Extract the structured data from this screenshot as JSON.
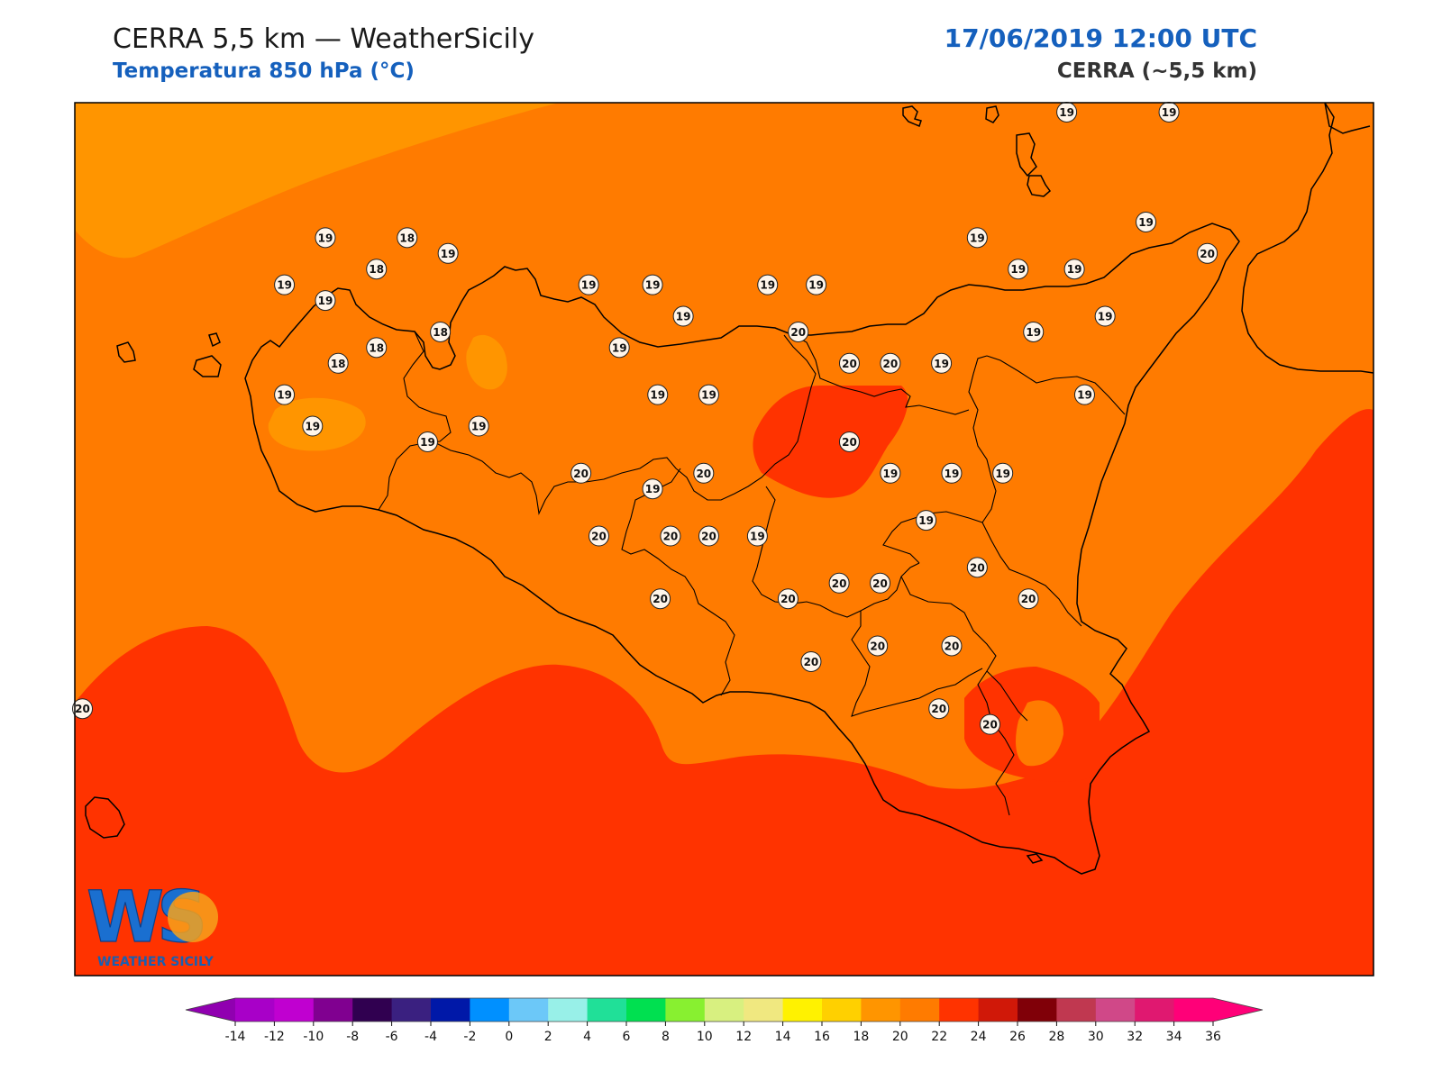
{
  "header": {
    "title": "CERRA 5,5 km — WeatherSicily",
    "subtitle": "Temperatura 850 hPa (°C)",
    "datetime": "17/06/2019 12:00 UTC",
    "model": "CERRA (~5,5 km)"
  },
  "logo": {
    "letters": "WS",
    "name": "WEATHER SICILY"
  },
  "colors": {
    "field_16_18": "#ff9500",
    "field_18_20": "#ff7b00",
    "field_20_22": "#ff3300",
    "coast": "#000000",
    "label_bg": "#fff5ea"
  },
  "colorbar": {
    "ticks": [
      "-14",
      "-12",
      "-10",
      "-8",
      "-6",
      "-4",
      "-2",
      "0",
      "2",
      "4",
      "6",
      "8",
      "10",
      "12",
      "14",
      "16",
      "18",
      "20",
      "22",
      "24",
      "26",
      "28",
      "30",
      "32",
      "34",
      "36"
    ],
    "colors": [
      "#a800c8",
      "#c000d0",
      "#800090",
      "#300050",
      "#3a2080",
      "#0018a8",
      "#0090ff",
      "#6cc8f8",
      "#98f0e8",
      "#20e098",
      "#00e050",
      "#88f030",
      "#d8f080",
      "#f0e880",
      "#fff200",
      "#ffd000",
      "#ff9500",
      "#ff7b00",
      "#ff3300",
      "#d01808",
      "#800008",
      "#c03850",
      "#d04888",
      "#e01870",
      "#ff0078"
    ],
    "min_arrow_color": "#9000b0",
    "max_arrow_color": "#ff0078"
  },
  "labels": [
    {
      "v": "19",
      "lon": 14.95,
      "lat": 39.0
    },
    {
      "v": "19",
      "lon": 15.35,
      "lat": 39.0
    },
    {
      "v": "19",
      "lon": 12.05,
      "lat": 38.6
    },
    {
      "v": "18",
      "lon": 12.37,
      "lat": 38.6
    },
    {
      "v": "19",
      "lon": 12.53,
      "lat": 38.55
    },
    {
      "v": "18",
      "lon": 12.25,
      "lat": 38.5
    },
    {
      "v": "19",
      "lon": 11.89,
      "lat": 38.45
    },
    {
      "v": "19",
      "lon": 12.05,
      "lat": 38.4
    },
    {
      "v": "19",
      "lon": 13.08,
      "lat": 38.45
    },
    {
      "v": "19",
      "lon": 13.33,
      "lat": 38.45
    },
    {
      "v": "19",
      "lon": 13.78,
      "lat": 38.45
    },
    {
      "v": "19",
      "lon": 13.97,
      "lat": 38.45
    },
    {
      "v": "19",
      "lon": 14.6,
      "lat": 38.6
    },
    {
      "v": "19",
      "lon": 14.76,
      "lat": 38.5
    },
    {
      "v": "19",
      "lon": 14.98,
      "lat": 38.5
    },
    {
      "v": "19",
      "lon": 15.26,
      "lat": 38.65
    },
    {
      "v": "20",
      "lon": 15.5,
      "lat": 38.55
    },
    {
      "v": "19",
      "lon": 13.45,
      "lat": 38.35
    },
    {
      "v": "20",
      "lon": 13.9,
      "lat": 38.3
    },
    {
      "v": "18",
      "lon": 12.5,
      "lat": 38.3
    },
    {
      "v": "19",
      "lon": 13.2,
      "lat": 38.25
    },
    {
      "v": "18",
      "lon": 12.25,
      "lat": 38.25
    },
    {
      "v": "18",
      "lon": 12.1,
      "lat": 38.2
    },
    {
      "v": "20",
      "lon": 14.1,
      "lat": 38.2
    },
    {
      "v": "20",
      "lon": 14.26,
      "lat": 38.2
    },
    {
      "v": "19",
      "lon": 14.46,
      "lat": 38.2
    },
    {
      "v": "19",
      "lon": 14.82,
      "lat": 38.3
    },
    {
      "v": "19",
      "lon": 15.1,
      "lat": 38.35
    },
    {
      "v": "19",
      "lon": 11.89,
      "lat": 38.1
    },
    {
      "v": "19",
      "lon": 13.35,
      "lat": 38.1
    },
    {
      "v": "19",
      "lon": 13.55,
      "lat": 38.1
    },
    {
      "v": "19",
      "lon": 15.02,
      "lat": 38.1
    },
    {
      "v": "19",
      "lon": 12.0,
      "lat": 38.0
    },
    {
      "v": "19",
      "lon": 12.45,
      "lat": 37.95
    },
    {
      "v": "19",
      "lon": 12.65,
      "lat": 38.0
    },
    {
      "v": "20",
      "lon": 14.1,
      "lat": 37.95
    },
    {
      "v": "20",
      "lon": 13.05,
      "lat": 37.85
    },
    {
      "v": "19",
      "lon": 13.33,
      "lat": 37.8
    },
    {
      "v": "20",
      "lon": 13.53,
      "lat": 37.85
    },
    {
      "v": "19",
      "lon": 14.26,
      "lat": 37.85
    },
    {
      "v": "19",
      "lon": 14.5,
      "lat": 37.85
    },
    {
      "v": "19",
      "lon": 14.7,
      "lat": 37.85
    },
    {
      "v": "19",
      "lon": 14.4,
      "lat": 37.7
    },
    {
      "v": "20",
      "lon": 13.12,
      "lat": 37.65
    },
    {
      "v": "20",
      "lon": 13.4,
      "lat": 37.65
    },
    {
      "v": "20",
      "lon": 13.55,
      "lat": 37.65
    },
    {
      "v": "19",
      "lon": 13.74,
      "lat": 37.65
    },
    {
      "v": "20",
      "lon": 14.6,
      "lat": 37.55
    },
    {
      "v": "20",
      "lon": 13.86,
      "lat": 37.45
    },
    {
      "v": "20",
      "lon": 13.36,
      "lat": 37.45
    },
    {
      "v": "20",
      "lon": 14.06,
      "lat": 37.5
    },
    {
      "v": "20",
      "lon": 14.22,
      "lat": 37.5
    },
    {
      "v": "20",
      "lon": 14.8,
      "lat": 37.45
    },
    {
      "v": "20",
      "lon": 14.21,
      "lat": 37.3
    },
    {
      "v": "20",
      "lon": 14.5,
      "lat": 37.3
    },
    {
      "v": "20",
      "lon": 13.95,
      "lat": 37.25
    },
    {
      "v": "20",
      "lon": 14.45,
      "lat": 37.1
    },
    {
      "v": "20",
      "lon": 14.65,
      "lat": 37.05
    },
    {
      "v": "20",
      "lon": 11.1,
      "lat": 37.1
    }
  ]
}
